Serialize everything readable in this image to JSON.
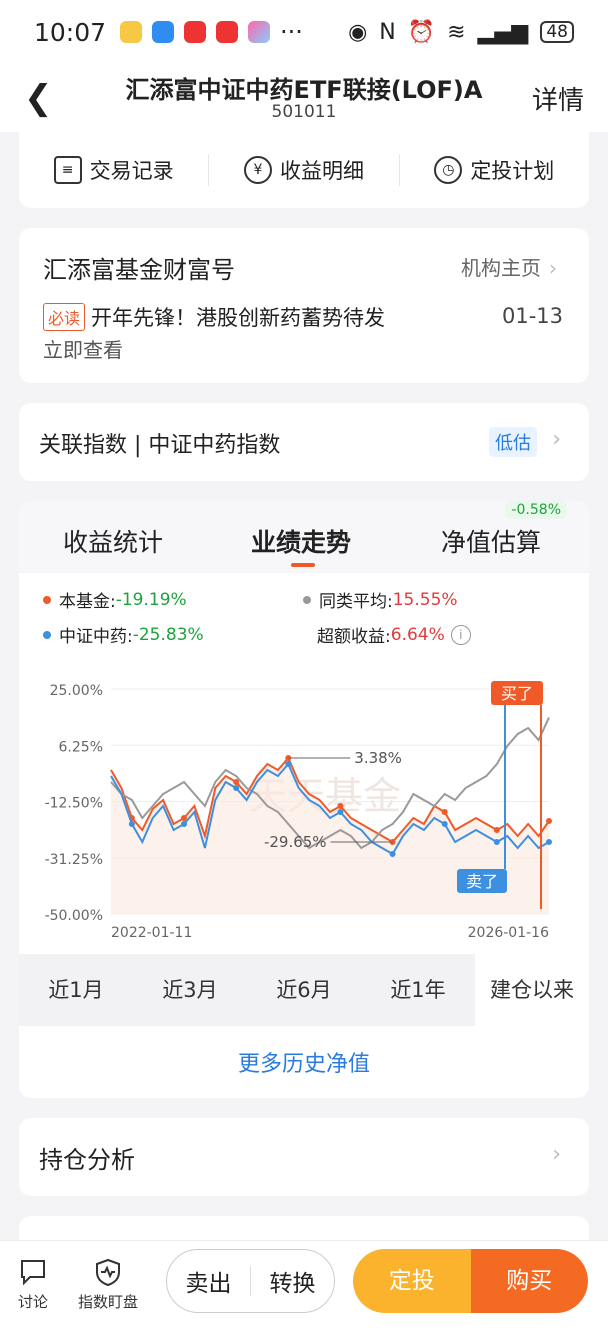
{
  "status": {
    "time": "10:07",
    "battery": "48"
  },
  "header": {
    "title": "汇添富中证中药ETF联接(LOF)A",
    "code": "501011",
    "detail": "详情"
  },
  "quick": {
    "records": "交易记录",
    "income": "收益明细",
    "plan": "定投计划"
  },
  "fortune": {
    "title": "汇添富基金财富号",
    "link": "机构主页",
    "badge": "必读",
    "news": "开年先锋！港股创新药蓄势待发",
    "date": "01-13",
    "view": "立即查看"
  },
  "index": {
    "label": "关联指数 | 中证中药指数",
    "tag": "低估"
  },
  "tabs": {
    "stats": "收益统计",
    "trend": "业绩走势",
    "estimate": "净值估算",
    "estimate_change": "-0.58%"
  },
  "legend": {
    "fund_label": "本基金:",
    "fund_value": "-19.19%",
    "peer_label": "同类平均:",
    "peer_value": "15.55%",
    "index_label": "中证中药:",
    "index_value": "-25.83%",
    "excess_label": "超额收益:",
    "excess_value": "6.64%"
  },
  "chart_data": {
    "type": "line",
    "y_ticks": [
      "25.00%",
      "6.25%",
      "-12.50%",
      "-31.25%",
      "-50.00%"
    ],
    "ylim": [
      -50,
      25
    ],
    "x_labels": [
      "2022-01-11",
      "2026-01-16"
    ],
    "series": [
      {
        "name": "本基金",
        "color": "#f05a28",
        "values": [
          -2,
          -8,
          -18,
          -22,
          -15,
          -12,
          -20,
          -18,
          -14,
          -24,
          -8,
          -4,
          -6,
          -10,
          -4,
          0,
          -2,
          2,
          -6,
          -10,
          -12,
          -16,
          -14,
          -18,
          -20,
          -22,
          -24,
          -26,
          -22,
          -18,
          -20,
          -14,
          -16,
          -22,
          -20,
          -18,
          -20,
          -22,
          -20,
          -24,
          -20,
          -24,
          -19
        ]
      },
      {
        "name": "同类平均",
        "color": "#999999",
        "values": [
          -6,
          -10,
          -12,
          -18,
          -14,
          -10,
          -8,
          -6,
          -10,
          -14,
          -6,
          -2,
          -4,
          -8,
          -10,
          -14,
          -16,
          -20,
          -24,
          -28,
          -26,
          -24,
          -22,
          -24,
          -28,
          -26,
          -22,
          -20,
          -16,
          -10,
          -12,
          -14,
          -10,
          -12,
          -8,
          -6,
          -4,
          0,
          6,
          10,
          12,
          8,
          15.5
        ]
      },
      {
        "name": "中证中药",
        "color": "#3d8fe0",
        "values": [
          -4,
          -10,
          -20,
          -26,
          -18,
          -14,
          -22,
          -20,
          -16,
          -28,
          -12,
          -6,
          -8,
          -12,
          -6,
          -2,
          -4,
          0,
          -8,
          -12,
          -14,
          -18,
          -16,
          -20,
          -22,
          -26,
          -28,
          -30,
          -24,
          -20,
          -22,
          -18,
          -20,
          -26,
          -24,
          -22,
          -24,
          -26,
          -24,
          -28,
          -24,
          -28,
          -26
        ]
      }
    ],
    "annotations": [
      {
        "text": "3.38%"
      },
      {
        "text": "-29.65%"
      }
    ],
    "markers": {
      "buy": "买了",
      "sell": "卖了"
    },
    "watermark": "天天基金"
  },
  "periods": [
    "近1月",
    "近3月",
    "近6月",
    "近1年",
    "建仓以来"
  ],
  "more_history": "更多历史净值",
  "holdings": {
    "title": "持仓分析"
  },
  "bottom": {
    "discuss": "讨论",
    "watch": "指数盯盘",
    "sell": "卖出",
    "switch": "转换",
    "auto": "定投",
    "buy": "购买"
  }
}
